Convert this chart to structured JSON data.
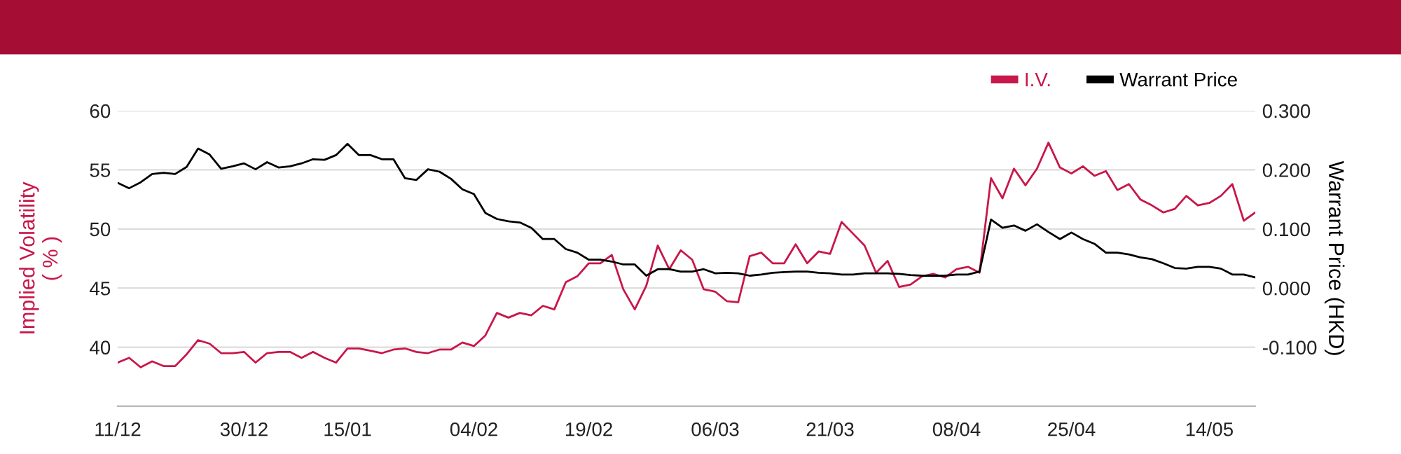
{
  "chart_data": {
    "type": "line",
    "categories": [
      "11/12",
      null,
      null,
      null,
      null,
      null,
      null,
      null,
      null,
      null,
      null,
      "30/12",
      null,
      null,
      null,
      null,
      null,
      null,
      null,
      null,
      "15/01",
      null,
      null,
      null,
      null,
      null,
      null,
      null,
      null,
      null,
      null,
      "04/02",
      null,
      null,
      null,
      null,
      null,
      null,
      null,
      null,
      null,
      "19/02",
      null,
      null,
      null,
      null,
      null,
      null,
      null,
      null,
      null,
      null,
      "06/03",
      null,
      null,
      null,
      null,
      null,
      null,
      null,
      null,
      null,
      "21/03",
      null,
      null,
      null,
      null,
      null,
      null,
      null,
      null,
      null,
      null,
      "08/04",
      null,
      null,
      null,
      null,
      null,
      null,
      null,
      null,
      null,
      "25/04",
      null,
      null,
      null,
      null,
      null,
      null,
      null,
      null,
      null,
      null,
      null,
      "14/05",
      null,
      null,
      null,
      null
    ],
    "series": [
      {
        "name": "I.V.",
        "color": "#c8174a",
        "values": [
          38.7,
          39.1,
          38.3,
          38.8,
          38.4,
          38.4,
          39.4,
          40.6,
          40.3,
          39.5,
          39.5,
          39.6,
          38.7,
          39.5,
          39.6,
          39.6,
          39.1,
          39.6,
          39.1,
          38.7,
          39.9,
          39.9,
          39.7,
          39.5,
          39.8,
          39.9,
          39.6,
          39.5,
          39.8,
          39.8,
          40.4,
          40.1,
          41.0,
          42.9,
          42.5,
          42.9,
          42.7,
          43.5,
          43.2,
          45.5,
          46.0,
          47.1,
          47.1,
          47.8,
          44.9,
          43.2,
          45.2,
          48.6,
          46.6,
          48.2,
          47.4,
          44.9,
          44.7,
          43.9,
          43.8,
          47.7,
          48.0,
          47.1,
          47.1,
          48.7,
          47.1,
          48.1,
          47.9,
          50.6,
          49.6,
          48.6,
          46.3,
          47.3,
          45.1,
          45.3,
          46.0,
          46.2,
          45.9,
          46.6,
          46.8,
          46.3,
          54.3,
          52.6,
          55.1,
          53.7,
          55.1,
          57.3,
          55.2,
          54.7,
          55.3,
          54.5,
          54.9,
          53.3,
          53.8,
          52.5,
          52.0,
          51.4,
          51.7,
          52.8,
          52.0,
          52.2,
          52.8,
          53.8,
          50.7,
          51.4
        ]
      },
      {
        "name": "Warrant Price",
        "color": "#000000",
        "axis": "y2",
        "values": [
          0.178,
          0.169,
          0.179,
          0.193,
          0.195,
          0.193,
          0.205,
          0.236,
          0.226,
          0.202,
          0.206,
          0.211,
          0.201,
          0.213,
          0.204,
          0.206,
          0.211,
          0.218,
          0.217,
          0.225,
          0.244,
          0.225,
          0.225,
          0.218,
          0.218,
          0.186,
          0.183,
          0.201,
          0.197,
          0.185,
          0.167,
          0.159,
          0.127,
          0.117,
          0.113,
          0.111,
          0.102,
          0.083,
          0.083,
          0.066,
          0.06,
          0.048,
          0.048,
          0.045,
          0.04,
          0.04,
          0.021,
          0.032,
          0.032,
          0.028,
          0.028,
          0.032,
          0.025,
          0.026,
          0.025,
          0.021,
          0.023,
          0.026,
          0.027,
          0.028,
          0.028,
          0.026,
          0.025,
          0.023,
          0.023,
          0.025,
          0.025,
          0.025,
          0.024,
          0.022,
          0.021,
          0.021,
          0.021,
          0.023,
          0.023,
          0.028,
          0.116,
          0.102,
          0.106,
          0.097,
          0.108,
          0.095,
          0.083,
          0.094,
          0.083,
          0.075,
          0.06,
          0.06,
          0.057,
          0.052,
          0.049,
          0.042,
          0.034,
          0.033,
          0.036,
          0.036,
          0.033,
          0.023,
          0.023,
          0.018
        ]
      }
    ],
    "ylabel": "Implied Volatility\n( % )",
    "y2label": "Warrant Price (HKD)",
    "ylim": [
      35,
      60
    ],
    "yticks": [
      40,
      45,
      50,
      55,
      60
    ],
    "y2lim": [
      -0.2,
      0.3
    ],
    "y2ticks": [
      {
        "value": -0.1,
        "label": "-0.100"
      },
      {
        "value": 0,
        "label": "0.000"
      },
      {
        "value": 0.1,
        "label": "0.100"
      },
      {
        "value": 0.2,
        "label": "0.200"
      },
      {
        "value": 0.3,
        "label": "0.300"
      }
    ],
    "grid": "y",
    "legend": "top right"
  }
}
